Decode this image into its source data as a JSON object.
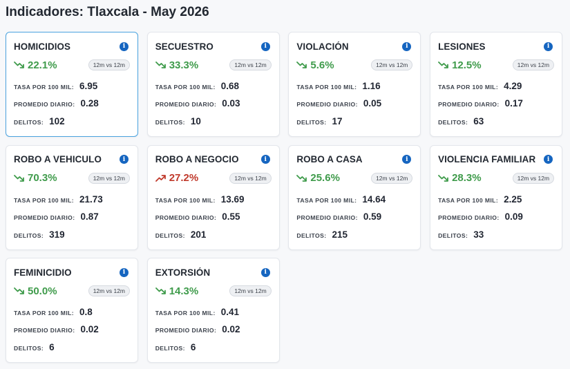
{
  "page": {
    "title": "Indicadores: Tlaxcala - May 2026"
  },
  "labels": {
    "rate": "TASA POR 100 MIL:",
    "daily": "PROMEDIO DIARIO:",
    "crimes": "DELITOS:",
    "period": "12m vs 12m",
    "info": "i"
  },
  "colors": {
    "trend_down": "#3f9b4b",
    "trend_up": "#c0392b",
    "info_icon": "#1565c0",
    "selected_border": "#4aa3df"
  },
  "cards": [
    {
      "name": "HOMICIDIOS",
      "change": "22.1%",
      "direction": "down",
      "rate": "6.95",
      "daily": "0.28",
      "crimes": "102",
      "selected": true
    },
    {
      "name": "SECUESTRO",
      "change": "33.3%",
      "direction": "down",
      "rate": "0.68",
      "daily": "0.03",
      "crimes": "10"
    },
    {
      "name": "VIOLACIÓN",
      "change": "5.6%",
      "direction": "down",
      "rate": "1.16",
      "daily": "0.05",
      "crimes": "17"
    },
    {
      "name": "LESIONES",
      "change": "12.5%",
      "direction": "down",
      "rate": "4.29",
      "daily": "0.17",
      "crimes": "63"
    },
    {
      "name": "ROBO A VEHICULO",
      "change": "70.3%",
      "direction": "down",
      "rate": "21.73",
      "daily": "0.87",
      "crimes": "319"
    },
    {
      "name": "ROBO A NEGOCIO",
      "change": "27.2%",
      "direction": "up",
      "rate": "13.69",
      "daily": "0.55",
      "crimes": "201"
    },
    {
      "name": "ROBO A CASA",
      "change": "25.6%",
      "direction": "down",
      "rate": "14.64",
      "daily": "0.59",
      "crimes": "215"
    },
    {
      "name": "VIOLENCIA FAMILIAR",
      "change": "28.3%",
      "direction": "down",
      "rate": "2.25",
      "daily": "0.09",
      "crimes": "33"
    },
    {
      "name": "FEMINICIDIO",
      "change": "50.0%",
      "direction": "down",
      "rate": "0.8",
      "daily": "0.02",
      "crimes": "6"
    },
    {
      "name": "EXTORSIÓN",
      "change": "14.3%",
      "direction": "down",
      "rate": "0.41",
      "daily": "0.02",
      "crimes": "6"
    }
  ]
}
